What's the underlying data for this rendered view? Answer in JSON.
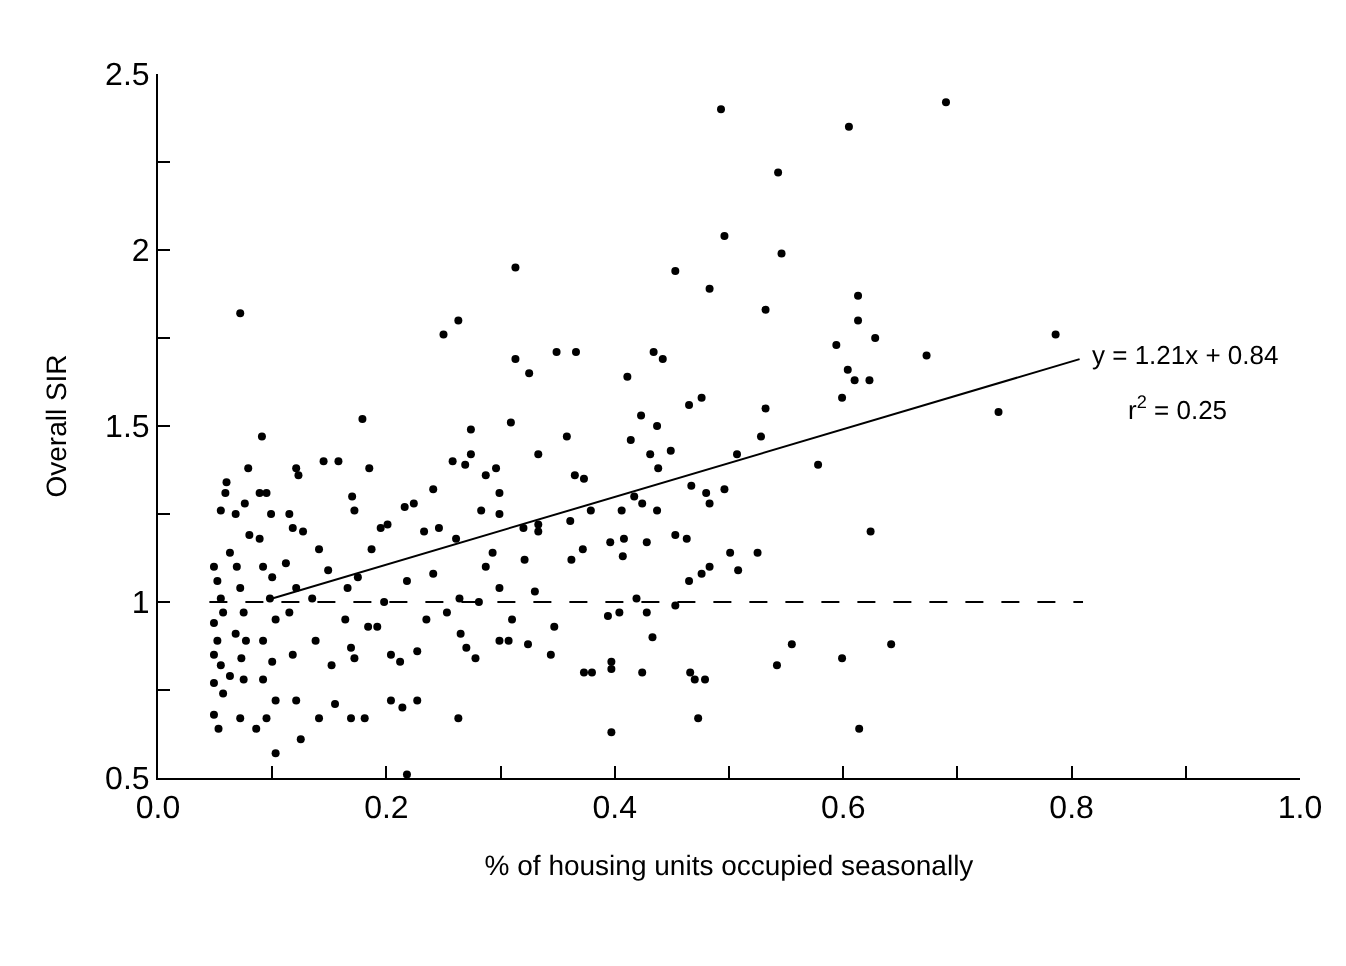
{
  "chart_data": {
    "type": "scatter",
    "xlabel": "% of housing units occupied seasonally",
    "ylabel": "Overall SIR",
    "xlim": [
      0,
      1.0
    ],
    "ylim": [
      0.5,
      2.5
    ],
    "xticks": [
      {
        "value": 0,
        "label": "0.0"
      },
      {
        "value": 0.1,
        "label": null
      },
      0.2,
      {
        "value": 0.3,
        "label": null
      },
      0.4,
      {
        "value": 0.5,
        "label": null
      },
      0.6,
      {
        "value": 0.7,
        "label": null
      },
      0.8,
      {
        "value": 0.9,
        "label": null
      },
      {
        "value": 1.0,
        "label": "1.0"
      }
    ],
    "yticks": [
      0.5,
      {
        "value": 0.75,
        "label": null
      },
      1,
      {
        "value": 1.25,
        "label": null
      },
      1.5,
      {
        "value": 1.75,
        "label": null
      },
      2,
      {
        "value": 2.25,
        "label": null
      },
      2.5
    ],
    "marker": "circle",
    "annotations": [
      "y = 1.21x + 0.84",
      "r$^{2}$ = 0.25"
    ],
    "ref_lines": [
      {
        "axis": "y",
        "value": 1,
        "color": "#000000",
        "line_style": "dashed"
      }
    ],
    "series": [
      {
        "color": "#000000",
        "x": [
          0.072,
          0.313,
          0.25,
          0.263,
          0.313,
          0.325,
          0.349,
          0.366,
          0.179,
          0.091,
          0.274,
          0.309,
          0.358,
          0.333,
          0.258,
          0.269,
          0.274,
          0.296,
          0.287,
          0.121,
          0.123,
          0.145,
          0.158,
          0.185,
          0.079,
          0.06,
          0.059,
          0.089,
          0.095,
          0.241,
          0.224,
          0.216,
          0.17,
          0.172,
          0.299,
          0.299,
          0.365,
          0.373,
          0.379,
          0.055,
          0.068,
          0.076,
          0.099,
          0.118,
          0.127,
          0.201,
          0.195,
          0.233,
          0.246,
          0.261,
          0.283,
          0.32,
          0.333,
          0.333,
          0.361,
          0.049,
          0.052,
          0.055,
          0.057,
          0.049,
          0.052,
          0.049,
          0.055,
          0.049,
          0.057,
          0.049,
          0.053,
          0.063,
          0.069,
          0.072,
          0.075,
          0.068,
          0.077,
          0.073,
          0.063,
          0.075,
          0.072,
          0.086,
          0.08,
          0.089,
          0.092,
          0.1,
          0.098,
          0.103,
          0.092,
          0.1,
          0.092,
          0.103,
          0.095,
          0.103,
          0.115,
          0.112,
          0.121,
          0.115,
          0.118,
          0.121,
          0.125,
          0.135,
          0.141,
          0.149,
          0.138,
          0.152,
          0.141,
          0.155,
          0.164,
          0.166,
          0.175,
          0.169,
          0.172,
          0.169,
          0.181,
          0.184,
          0.192,
          0.187,
          0.198,
          0.204,
          0.212,
          0.204,
          0.214,
          0.227,
          0.227,
          0.235,
          0.218,
          0.241,
          0.253,
          0.264,
          0.265,
          0.27,
          0.263,
          0.278,
          0.281,
          0.287,
          0.293,
          0.299,
          0.299,
          0.307,
          0.31,
          0.324,
          0.33,
          0.321,
          0.344,
          0.347,
          0.362,
          0.372,
          0.373,
          0.218,
          0.493,
          0.69,
          0.605,
          0.543,
          0.546,
          0.496,
          0.453,
          0.483,
          0.532,
          0.613,
          0.613,
          0.628,
          0.594,
          0.604,
          0.61,
          0.623,
          0.599,
          0.673,
          0.786,
          0.736,
          0.532,
          0.528,
          0.507,
          0.578,
          0.434,
          0.442,
          0.411,
          0.423,
          0.437,
          0.414,
          0.431,
          0.449,
          0.438,
          0.465,
          0.476,
          0.467,
          0.48,
          0.483,
          0.496,
          0.417,
          0.424,
          0.406,
          0.437,
          0.396,
          0.408,
          0.407,
          0.428,
          0.453,
          0.463,
          0.501,
          0.525,
          0.508,
          0.483,
          0.476,
          0.465,
          0.624,
          0.394,
          0.404,
          0.428,
          0.433,
          0.419,
          0.453,
          0.555,
          0.542,
          0.599,
          0.642,
          0.397,
          0.397,
          0.424,
          0.466,
          0.47,
          0.479,
          0.473,
          0.397,
          0.614,
          0.38
        ],
        "values": [
          1.82,
          1.95,
          1.76,
          1.8,
          1.69,
          1.65,
          1.71,
          1.71,
          1.52,
          1.47,
          1.49,
          1.51,
          1.47,
          1.42,
          1.4,
          1.39,
          1.42,
          1.38,
          1.36,
          1.38,
          1.36,
          1.4,
          1.4,
          1.38,
          1.38,
          1.34,
          1.31,
          1.31,
          1.31,
          1.32,
          1.28,
          1.27,
          1.3,
          1.26,
          1.31,
          1.25,
          1.36,
          1.35,
          1.26,
          1.26,
          1.25,
          1.28,
          1.25,
          1.21,
          1.2,
          1.22,
          1.21,
          1.2,
          1.21,
          1.18,
          1.26,
          1.21,
          1.22,
          1.2,
          1.23,
          1.1,
          1.06,
          1.01,
          0.97,
          0.94,
          0.89,
          0.85,
          0.82,
          0.77,
          0.74,
          0.68,
          0.64,
          1.14,
          1.1,
          1.04,
          0.97,
          0.91,
          0.89,
          0.84,
          0.79,
          0.78,
          0.67,
          0.64,
          1.19,
          1.18,
          1.1,
          1.07,
          1.01,
          0.95,
          0.89,
          0.83,
          0.78,
          0.72,
          0.67,
          0.57,
          1.25,
          1.11,
          1.04,
          0.97,
          0.85,
          0.72,
          0.61,
          1.01,
          1.15,
          1.09,
          0.89,
          0.82,
          0.67,
          0.71,
          0.95,
          1.04,
          1.07,
          0.87,
          0.84,
          0.67,
          0.67,
          0.93,
          0.93,
          1.15,
          1.0,
          0.85,
          0.83,
          0.72,
          0.7,
          0.72,
          0.86,
          0.95,
          1.06,
          1.08,
          0.97,
          1.01,
          0.91,
          0.87,
          0.67,
          0.84,
          1.0,
          1.1,
          1.14,
          1.04,
          0.89,
          0.89,
          0.95,
          0.88,
          1.03,
          1.12,
          0.85,
          0.93,
          1.12,
          1.15,
          0.8,
          0.51,
          2.4,
          2.42,
          2.35,
          2.22,
          1.99,
          2.04,
          1.94,
          1.89,
          1.83,
          1.87,
          1.8,
          1.75,
          1.73,
          1.66,
          1.63,
          1.63,
          1.58,
          1.7,
          1.76,
          1.54,
          1.55,
          1.47,
          1.42,
          1.39,
          1.71,
          1.69,
          1.64,
          1.53,
          1.5,
          1.46,
          1.42,
          1.43,
          1.38,
          1.56,
          1.58,
          1.33,
          1.31,
          1.28,
          1.32,
          1.3,
          1.28,
          1.26,
          1.26,
          1.17,
          1.18,
          1.13,
          1.17,
          1.19,
          1.18,
          1.14,
          1.14,
          1.09,
          1.1,
          1.08,
          1.06,
          1.2,
          0.96,
          0.97,
          0.97,
          0.9,
          1.01,
          0.99,
          0.88,
          0.82,
          0.84,
          0.88,
          0.83,
          0.81,
          0.8,
          0.8,
          0.78,
          0.78,
          0.67,
          0.63,
          0.64,
          0.8
        ]
      },
      {
        "type": "line",
        "color": "#000000",
        "line_style": "solid",
        "marker": "none",
        "x": [
          0.1,
          0.807
        ],
        "values": [
          1.01,
          1.69
        ]
      }
    ]
  }
}
